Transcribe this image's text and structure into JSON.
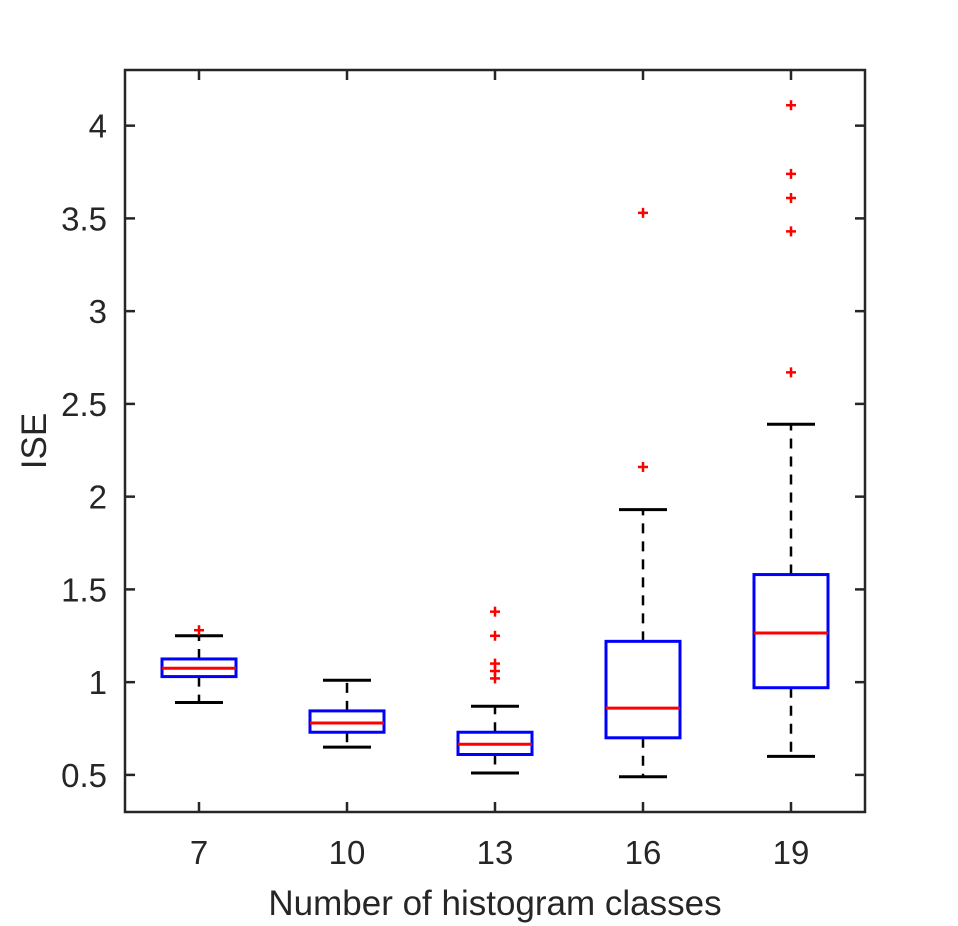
{
  "chart_data": {
    "type": "box",
    "title": "",
    "xlabel": "Number of histogram classes",
    "ylabel": "ISE",
    "categories": [
      "7",
      "10",
      "13",
      "16",
      "19"
    ],
    "ylim": [
      0.3,
      4.3
    ],
    "yticks": [
      0.5,
      1,
      1.5,
      2,
      2.5,
      3,
      3.5,
      4
    ],
    "ytick_labels": [
      "0.5",
      "1",
      "1.5",
      "2",
      "2.5",
      "3",
      "3.5",
      "4"
    ],
    "grid": false,
    "colors": {
      "box": "#0000ff",
      "median": "#ff0000",
      "whisker": "#000000",
      "outlier": "#ff0000",
      "axis": "#262626"
    },
    "boxes": [
      {
        "category": "7",
        "whisker_low": 0.89,
        "q1": 1.03,
        "median": 1.075,
        "q3": 1.125,
        "whisker_high": 1.25,
        "outliers": [
          1.28
        ]
      },
      {
        "category": "10",
        "whisker_low": 0.65,
        "q1": 0.73,
        "median": 0.78,
        "q3": 0.845,
        "whisker_high": 1.01,
        "outliers": []
      },
      {
        "category": "13",
        "whisker_low": 0.51,
        "q1": 0.61,
        "median": 0.665,
        "q3": 0.73,
        "whisker_high": 0.87,
        "outliers": [
          1.02,
          1.06,
          1.1,
          1.25,
          1.38
        ]
      },
      {
        "category": "16",
        "whisker_low": 0.49,
        "q1": 0.7,
        "median": 0.86,
        "q3": 1.22,
        "whisker_high": 1.93,
        "outliers": [
          2.16,
          3.53
        ]
      },
      {
        "category": "19",
        "whisker_low": 0.6,
        "q1": 0.97,
        "median": 1.265,
        "q3": 1.58,
        "whisker_high": 2.39,
        "outliers": [
          2.67,
          3.43,
          3.61,
          3.74,
          4.11
        ]
      }
    ]
  }
}
